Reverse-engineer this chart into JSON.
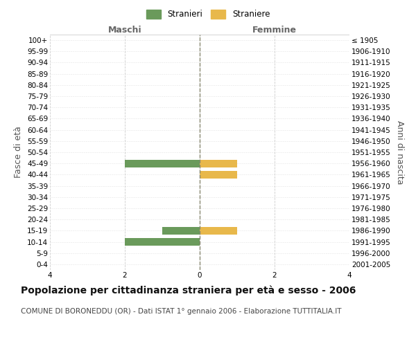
{
  "age_groups": [
    "0-4",
    "5-9",
    "10-14",
    "15-19",
    "20-24",
    "25-29",
    "30-34",
    "35-39",
    "40-44",
    "45-49",
    "50-54",
    "55-59",
    "60-64",
    "65-69",
    "70-74",
    "75-79",
    "80-84",
    "85-89",
    "90-94",
    "95-99",
    "100+"
  ],
  "birth_years": [
    "2001-2005",
    "1996-2000",
    "1991-1995",
    "1986-1990",
    "1981-1985",
    "1976-1980",
    "1971-1975",
    "1966-1970",
    "1961-1965",
    "1956-1960",
    "1951-1955",
    "1946-1950",
    "1941-1945",
    "1936-1940",
    "1931-1935",
    "1926-1930",
    "1921-1925",
    "1916-1920",
    "1911-1915",
    "1906-1910",
    "≤ 1905"
  ],
  "males": [
    0,
    0,
    -2,
    -1,
    0,
    0,
    0,
    0,
    0,
    -2,
    0,
    0,
    0,
    0,
    0,
    0,
    0,
    0,
    0,
    0,
    0
  ],
  "females": [
    0,
    0,
    0,
    1,
    0,
    0,
    0,
    0,
    1,
    1,
    0,
    0,
    0,
    0,
    0,
    0,
    0,
    0,
    0,
    0,
    0
  ],
  "male_color": "#6a9a5b",
  "female_color": "#e8b84b",
  "xlim": [
    -4,
    4
  ],
  "xticks": [
    -4,
    -2,
    0,
    2,
    4
  ],
  "xlabel_maschi": "Maschi",
  "xlabel_femmine": "Femmine",
  "ylabel_left": "Fasce di età",
  "ylabel_right": "Anni di nascita",
  "legend_male": "Stranieri",
  "legend_female": "Straniere",
  "title": "Popolazione per cittadinanza straniera per età e sesso - 2006",
  "subtitle": "COMUNE DI BORONEDDU (OR) - Dati ISTAT 1° gennaio 2006 - Elaborazione TUTTITALIA.IT",
  "bg_color": "#ffffff",
  "grid_color": "#cccccc",
  "bar_height": 0.7,
  "title_fontsize": 10,
  "subtitle_fontsize": 7.5,
  "tick_fontsize": 7.5,
  "label_fontsize": 9
}
